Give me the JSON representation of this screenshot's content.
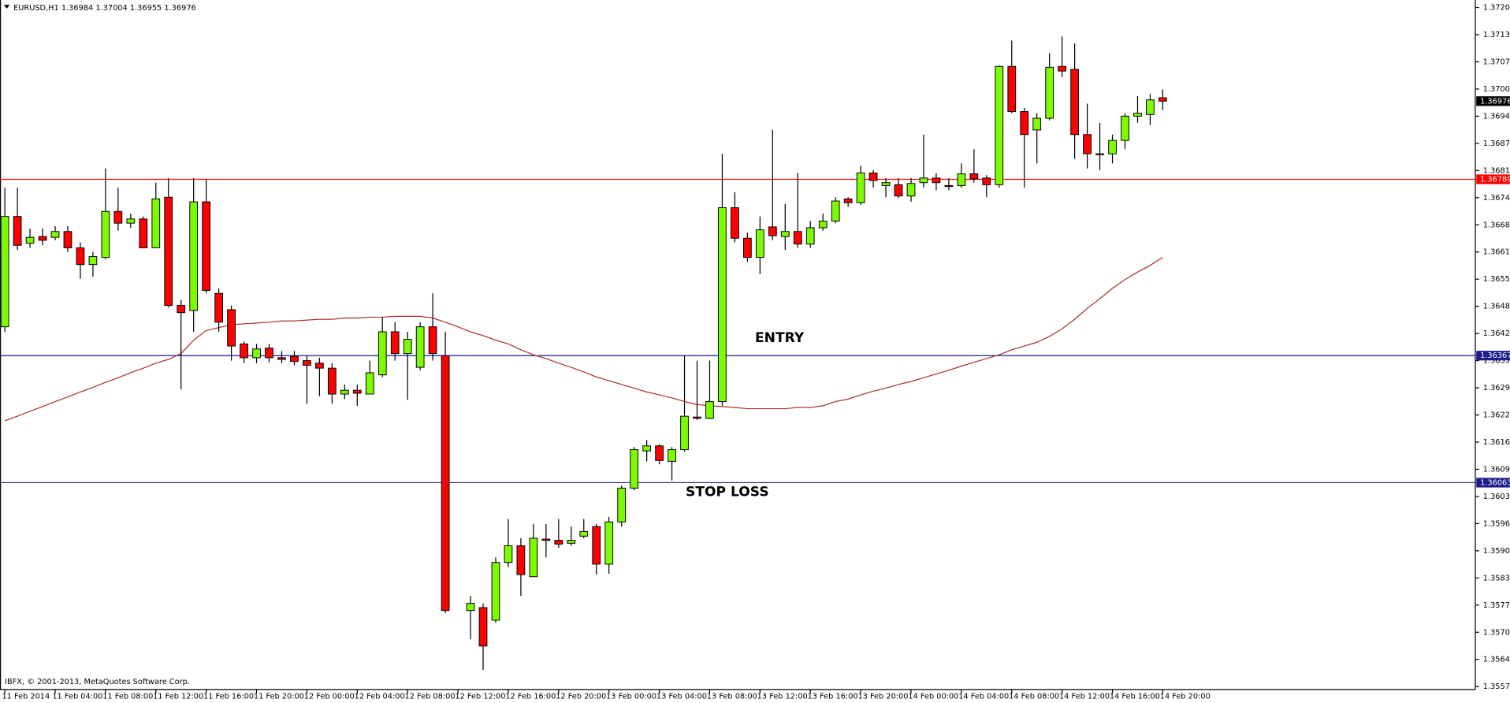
{
  "chart_data": {
    "type": "candlestick",
    "title": "EURUSD,H1",
    "categories": [
      "11 Feb 2014",
      null,
      null,
      null,
      "11 Feb 04:00",
      null,
      null,
      null,
      "11 Feb 08:00",
      null,
      null,
      null,
      "11 Feb 12:00",
      null,
      null,
      null,
      "11 Feb 16:00",
      null,
      null,
      null,
      "11 Feb 20:00",
      null,
      null,
      null,
      "12 Feb 00:00",
      null,
      null,
      null,
      "12 Feb 04:00",
      null,
      null,
      null,
      "12 Feb 08:00",
      null,
      null,
      null,
      "12 Feb 12:00",
      null,
      null,
      null,
      "12 Feb 16:00",
      null,
      null,
      null,
      "12 Feb 20:00",
      null,
      null,
      null,
      "13 Feb 00:00",
      null,
      null,
      null,
      "13 Feb 04:00",
      null,
      null,
      null,
      "13 Feb 08:00",
      null,
      null,
      null,
      "13 Feb 12:00",
      null,
      null,
      null,
      "13 Feb 16:00",
      null,
      null,
      null,
      "13 Feb 20:00",
      null,
      null,
      null,
      "14 Feb 00:00",
      null,
      null,
      null,
      "14 Feb 04:00",
      null,
      null,
      null,
      "14 Feb 08:00",
      null,
      null,
      null,
      "14 Feb 12:00",
      null,
      null,
      null,
      "14 Feb 16:00",
      null,
      null,
      null,
      "14 Feb 20:00"
    ],
    "open": [
      1.36436,
      1.367,
      1.36636,
      1.36652,
      1.3665,
      1.36664,
      1.36625,
      1.36585,
      1.36602,
      1.36712,
      1.36684,
      1.36694,
      1.36625,
      1.36746,
      1.36487,
      1.36475,
      1.36735,
      1.36516,
      1.36477,
      1.36395,
      1.36362,
      1.36385,
      1.36362,
      1.36365,
      1.36355,
      1.36349,
      1.36337,
      1.36275,
      1.36284,
      1.36275,
      1.36321,
      1.36424,
      1.36372,
      1.36339,
      1.36436,
      1.36367,
      null,
      1.35757,
      1.35764,
      1.35734,
      1.35872,
      1.35912,
      1.35838,
      1.35928,
      1.35925,
      1.35918,
      1.35935,
      1.35958,
      1.35868,
      1.35969,
      1.3605,
      1.36139,
      1.36151,
      1.36114,
      1.36142,
      1.3622,
      1.36217,
      1.36257,
      1.36721,
      1.36648,
      1.36602,
      1.36675,
      1.36652,
      1.36664,
      1.36634,
      1.36673,
      1.36689,
      1.36742,
      1.36733,
      1.36804,
      1.36774,
      1.36776,
      1.36749,
      1.36781,
      1.36792,
      1.36774,
      1.36774,
      1.36802,
      1.36792,
      1.36776,
      1.37059,
      1.36951,
      1.36907,
      1.36935,
      1.37059,
      1.37052,
      1.36896,
      1.3685,
      1.3685,
      1.36882,
      1.3694,
      1.36944,
      1.36984
    ],
    "high": [
      1.36769,
      1.36769,
      1.36671,
      1.36671,
      1.36677,
      1.36677,
      1.36638,
      1.36615,
      1.36815,
      1.36769,
      1.36707,
      1.367,
      1.36781,
      1.36792,
      1.365,
      1.36792,
      1.36788,
      1.36528,
      1.36487,
      1.36401,
      1.36395,
      1.36395,
      1.36378,
      1.36378,
      1.36367,
      1.36362,
      1.36349,
      1.36298,
      1.36298,
      1.36355,
      1.36459,
      1.36447,
      1.36424,
      1.36447,
      1.36516,
      1.36424,
      null,
      1.35792,
      1.35774,
      1.35884,
      1.35976,
      1.3593,
      1.35964,
      1.35964,
      1.35976,
      1.35958,
      1.35976,
      1.35964,
      1.35981,
      1.36056,
      1.36148,
      1.36165,
      1.36155,
      1.36148,
      1.36367,
      1.36355,
      1.36355,
      1.3685,
      1.36758,
      1.36661,
      1.367,
      1.36907,
      1.3673,
      1.36804,
      1.36689,
      1.36707,
      1.36746,
      1.36746,
      1.36822,
      1.36811,
      1.36792,
      1.36792,
      1.36792,
      1.36896,
      1.36804,
      1.36792,
      1.36827,
      1.36861,
      1.36799,
      1.37062,
      1.37121,
      1.3696,
      1.36947,
      1.37091,
      1.37131,
      1.37114,
      1.3697,
      1.36924,
      1.36896,
      1.36947,
      1.36988,
      1.36993,
      1.37004
    ],
    "low": [
      1.36424,
      1.3662,
      1.36625,
      1.36631,
      1.36643,
      1.36615,
      1.36551,
      1.36556,
      1.36597,
      1.36666,
      1.36673,
      1.36625,
      1.36625,
      1.36482,
      1.36286,
      1.36424,
      1.36516,
      1.36424,
      1.36355,
      1.36349,
      1.36349,
      1.36351,
      1.36349,
      1.36344,
      1.36252,
      1.3627,
      1.36252,
      1.36263,
      1.36247,
      1.36275,
      1.36316,
      1.36355,
      1.36261,
      1.36332,
      1.36355,
      1.35751,
      null,
      1.35688,
      1.35615,
      1.35728,
      1.35861,
      1.35792,
      1.35838,
      1.35884,
      1.35907,
      1.35912,
      1.3593,
      1.35843,
      1.35845,
      1.35958,
      1.36045,
      1.36114,
      1.36107,
      1.36068,
      1.36137,
      1.36213,
      1.36215,
      1.36247,
      1.36638,
      1.36592,
      1.36562,
      1.36643,
      1.3662,
      1.36625,
      1.36625,
      1.36666,
      1.36684,
      1.36723,
      1.36728,
      1.36769,
      1.36746,
      1.36744,
      1.36735,
      1.36769,
      1.36763,
      1.36763,
      1.36769,
      1.36781,
      1.36746,
      1.36769,
      1.36947,
      1.36769,
      1.36827,
      1.3693,
      1.37034,
      1.36838,
      1.36815,
      1.36811,
      1.36827,
      1.36861,
      1.36924,
      1.36919,
      1.36955
    ],
    "close": [
      1.367,
      1.36631,
      1.3665,
      1.36643,
      1.36664,
      1.36625,
      1.36585,
      1.36604,
      1.36712,
      1.36684,
      1.36694,
      1.36625,
      1.36742,
      1.36487,
      1.3647,
      1.36735,
      1.36523,
      1.36447,
      1.3639,
      1.36362,
      1.36383,
      1.36362,
      1.36358,
      1.36353,
      1.36344,
      1.36337,
      1.36275,
      1.36284,
      1.36277,
      1.36326,
      1.36424,
      1.36372,
      1.36406,
      1.36436,
      1.36372,
      1.35757,
      null,
      1.35774,
      1.35672,
      1.35872,
      1.35912,
      1.35843,
      1.3593,
      1.35925,
      1.35916,
      1.35925,
      1.35946,
      1.35868,
      1.35969,
      1.3605,
      1.36142,
      1.36151,
      1.36116,
      1.36142,
      1.36222,
      1.36217,
      1.36257,
      1.36721,
      1.36648,
      1.36602,
      1.36668,
      1.36654,
      1.36664,
      1.36634,
      1.36673,
      1.36689,
      1.36737,
      1.36733,
      1.36804,
      1.36786,
      1.36781,
      1.36749,
      1.36779,
      1.36792,
      1.36781,
      1.36772,
      1.36802,
      1.3679,
      1.36776,
      1.37059,
      1.36951,
      1.36896,
      1.36935,
      1.37057,
      1.37048,
      1.36896,
      1.3685,
      1.36848,
      1.36882,
      1.3694,
      1.36947,
      1.36979,
      1.36976
    ],
    "up_color": "#7cfc00",
    "down_color": "#ff0000",
    "moving_average": {
      "color": "#a8312c",
      "values": [
        1.36211,
        1.36222,
        1.36234,
        1.36245,
        1.36257,
        1.36268,
        1.3628,
        1.36291,
        1.36303,
        1.36314,
        1.36326,
        1.36337,
        1.36349,
        1.36358,
        1.36372,
        1.36404,
        1.36427,
        1.36434,
        1.36441,
        1.36443,
        1.36445,
        1.36447,
        1.3645,
        1.3645,
        1.36452,
        1.36454,
        1.36454,
        1.36457,
        1.36457,
        1.36459,
        1.36459,
        1.36461,
        1.36461,
        1.36461,
        1.36457,
        1.36447,
        1.36436,
        1.36424,
        1.36415,
        1.36404,
        1.36395,
        1.36381,
        1.36369,
        1.3636,
        1.36349,
        1.36339,
        1.36328,
        1.36316,
        1.36307,
        1.36298,
        1.36289,
        1.3628,
        1.36273,
        1.36266,
        1.36257,
        1.3625,
        1.36247,
        1.36245,
        1.36243,
        1.3624,
        1.3624,
        1.3624,
        1.3624,
        1.36243,
        1.36243,
        1.36247,
        1.36257,
        1.36263,
        1.36273,
        1.36282,
        1.36289,
        1.36298,
        1.36305,
        1.36314,
        1.36323,
        1.36332,
        1.36342,
        1.36351,
        1.3636,
        1.36369,
        1.36381,
        1.3639,
        1.36399,
        1.36413,
        1.36431,
        1.36454,
        1.3648,
        1.36503,
        1.36528,
        1.36549,
        1.36567,
        1.36583,
        1.36602
      ]
    },
    "levels": [
      {
        "value": 1.36789,
        "color": "#ff0000"
      },
      {
        "value": 1.36367,
        "color": "#1c1c8c"
      },
      {
        "value": 1.36063,
        "color": "#1c1c8c"
      }
    ],
    "current_price_color": "#000000",
    "ylim": [
      1.35568,
      1.37218
    ],
    "yticks": [
      {
        "value": 1.372,
        "label": "1.37200"
      },
      1.37135,
      {
        "value": 1.3707,
        "label": "1.37070"
      },
      1.37005,
      {
        "value": 1.3694,
        "label": "1.36940"
      },
      1.36875,
      {
        "value": 1.3681,
        "label": "1.36810"
      },
      1.36745,
      {
        "value": 1.3668,
        "label": "1.36680"
      },
      1.36615,
      {
        "value": 1.3655,
        "label": "1.36550"
      },
      1.36485,
      {
        "value": 1.3642,
        "label": "1.36420"
      },
      1.36355,
      {
        "value": 1.3629,
        "label": "1.36290"
      },
      1.36225,
      {
        "value": 1.3616,
        "label": "1.36160"
      },
      1.36095,
      {
        "value": 1.3603,
        "label": "1.36030"
      },
      1.35965,
      {
        "value": 1.359,
        "label": "1.35900"
      },
      1.35835,
      {
        "value": 1.3577,
        "label": "1.35770"
      },
      1.35705,
      {
        "value": 1.3564,
        "label": "1.35640"
      },
      1.35575
    ],
    "annotations": [
      "ENTRY",
      "STOP LOSS"
    ],
    "footer": "IBFX, © 2001-2013, MetaQuotes Software Corp."
  }
}
